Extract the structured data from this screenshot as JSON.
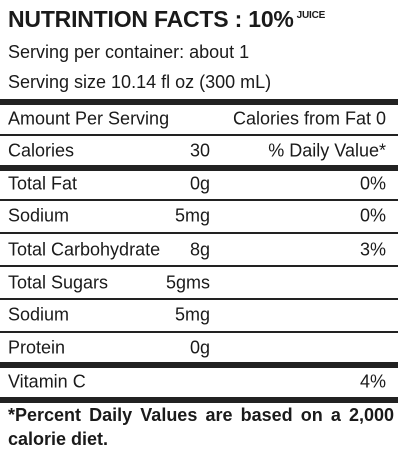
{
  "title": {
    "main": "NUTRINTION FACTS : 10%",
    "suffix": "JUICE"
  },
  "serving": {
    "per_container": "Serving per container: about 1",
    "size": "Serving size 10.14 fl oz (300 mL)"
  },
  "header_row": {
    "left": "Amount Per Serving",
    "right": "Calories from Fat 0"
  },
  "calories_row": {
    "label": "Calories",
    "amount": "30",
    "right": "% Daily Value*"
  },
  "nutrients": [
    {
      "name": "Total Fat",
      "amount": "0g",
      "dv": "0%"
    },
    {
      "name": "Sodium",
      "amount": "5mg",
      "dv": "0%"
    },
    {
      "name": "Total Carbohydrate",
      "amount": "8g",
      "dv": "3%"
    },
    {
      "name": "Total Sugars",
      "amount": "5gms",
      "dv": ""
    },
    {
      "name": "Sodium",
      "amount": "5mg",
      "dv": ""
    },
    {
      "name": "Protein",
      "amount": "0g",
      "dv": ""
    },
    {
      "name": "Vitamin C",
      "amount": "",
      "dv": "4%"
    }
  ],
  "footnote": "*Percent Daily Values are based on a 2,000 calorie diet."
}
